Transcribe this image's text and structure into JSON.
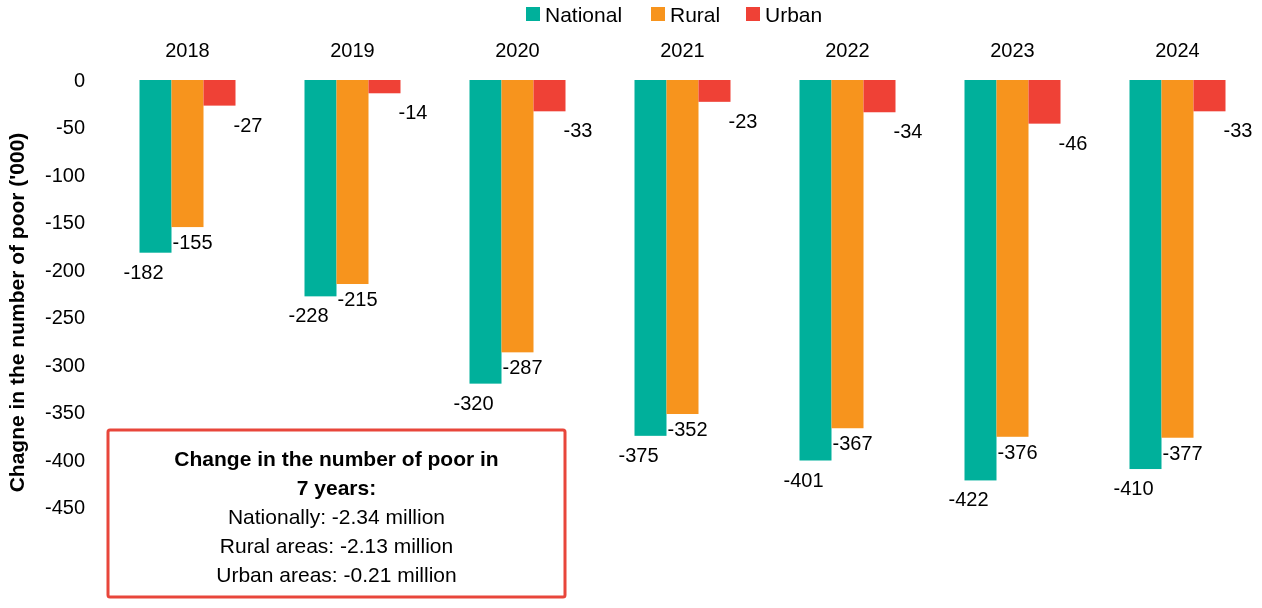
{
  "chart_data": {
    "type": "bar",
    "ylabel": "Chagne in the number of poor ('000)",
    "categories": [
      "2018",
      "2019",
      "2020",
      "2021",
      "2022",
      "2023",
      "2024"
    ],
    "series": [
      {
        "name": "National",
        "color": "#00b09b",
        "values": [
          -182,
          -228,
          -320,
          -375,
          -401,
          -422,
          -410
        ]
      },
      {
        "name": "Rural",
        "color": "#f7941d",
        "values": [
          -155,
          -215,
          -287,
          -352,
          -367,
          -376,
          -377
        ]
      },
      {
        "name": "Urban",
        "color": "#ef4136",
        "values": [
          -27,
          -14,
          -33,
          -23,
          -34,
          -46,
          -33
        ]
      }
    ],
    "ylim": [
      -450,
      0
    ],
    "yticks": [
      0,
      -50,
      -100,
      -150,
      -200,
      -250,
      -300,
      -350,
      -400,
      -450
    ],
    "data_labels": true,
    "legend": "top",
    "grid": false,
    "annotations": [
      "Change in the number of poor in 7 years:",
      "Nationally: -2.34 million",
      "Rural areas: -2.13 million",
      "Urban areas: -0.21 million"
    ]
  }
}
